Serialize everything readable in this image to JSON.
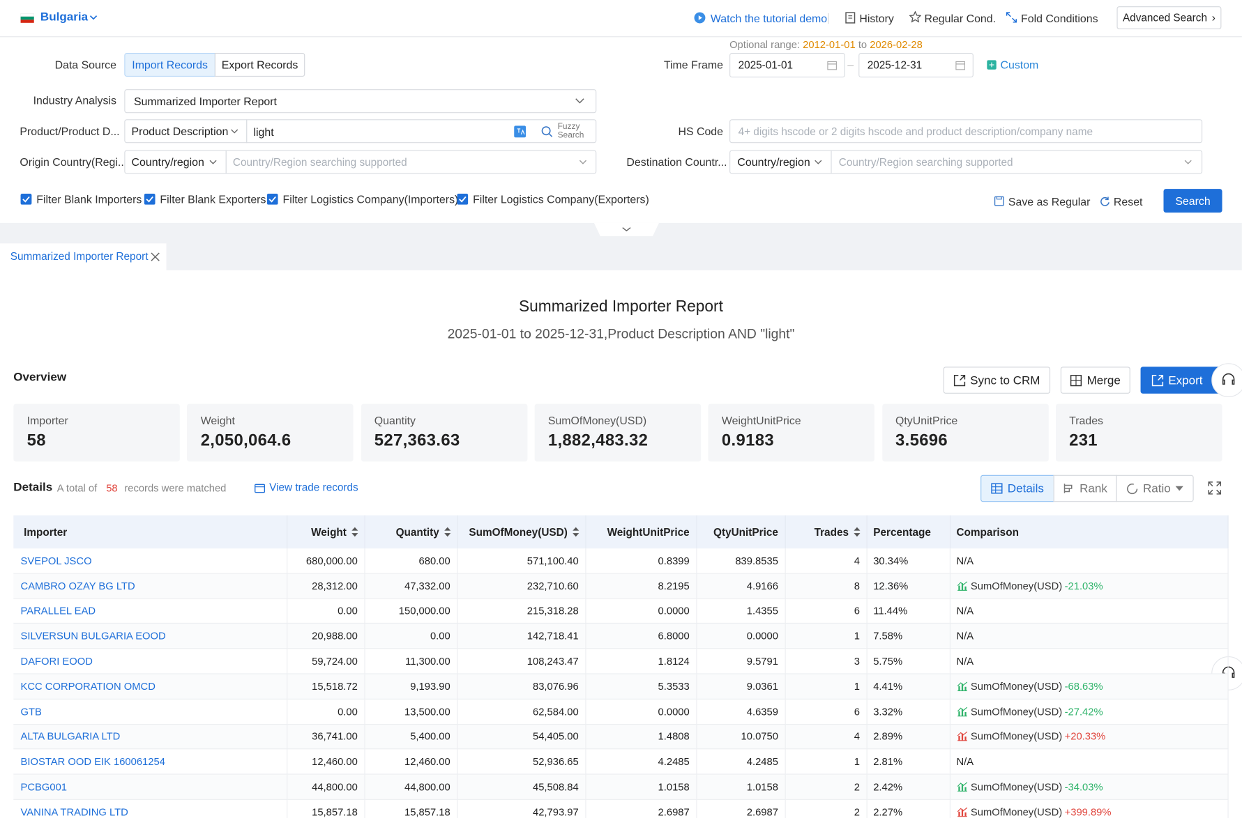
{
  "header": {
    "country": "Bulgaria",
    "links": [
      "Watch the tutorial demo",
      "History",
      "Regular Cond.",
      "Fold Conditions"
    ],
    "advanced_search": "Advanced Search"
  },
  "filters": {
    "optional_range": {
      "label": "Optional range:",
      "start": "2012-01-01",
      "to": "to",
      "end": "2026-02-28"
    },
    "data_source": {
      "label": "Data Source",
      "options": [
        "Import Records",
        "Export Records"
      ]
    },
    "time_frame": {
      "label": "Time Frame",
      "start": "2025-01-01",
      "end": "2025-12-31",
      "custom": "Custom"
    },
    "industry_analysis": {
      "label": "Industry Analysis",
      "value": "Summarized Importer Report"
    },
    "product": {
      "label": "Product/Product D...",
      "type": "Product Description",
      "value": "light",
      "fuzzy": [
        "Fuzzy",
        "Search"
      ]
    },
    "hs_code": {
      "label": "HS Code",
      "placeholder": "4+ digits hscode or 2 digits hscode and product description/company name"
    },
    "origin": {
      "label": "Origin Country(Regi...",
      "type": "Country/region",
      "placeholder": "Country/Region searching supported"
    },
    "destination": {
      "label": "Destination Countr...",
      "type": "Country/region",
      "placeholder": "Country/Region searching supported"
    },
    "checkboxes": [
      "Filter Blank Importers",
      "Filter Blank Exporters",
      "Filter Logistics Company(Importers)",
      "Filter Logistics Company(Exporters)"
    ],
    "actions": [
      "Save as Regular",
      "Reset",
      "Search"
    ]
  },
  "tab": "Summarized Importer Report",
  "report": {
    "title": "Summarized Importer Report",
    "subtitle": "2025-01-01 to 2025-12-31,Product Description AND \"light\"",
    "overview": "Overview",
    "buttons": [
      "Sync to CRM",
      "Merge",
      "Export"
    ],
    "stats": [
      {
        "label": "Importer",
        "value": "58"
      },
      {
        "label": "Weight",
        "value": "2,050,064.6"
      },
      {
        "label": "Quantity",
        "value": "527,363.63"
      },
      {
        "label": "SumOfMoney(USD)",
        "value": "1,882,483.32"
      },
      {
        "label": "WeightUnitPrice",
        "value": "0.9183"
      },
      {
        "label": "QtyUnitPrice",
        "value": "3.5696"
      },
      {
        "label": "Trades",
        "value": "231"
      }
    ],
    "details": {
      "label": "Details",
      "matched": [
        "A total of",
        "58",
        "records were matched"
      ],
      "view": "View trade records",
      "views": [
        "Details",
        "Rank",
        "Ratio"
      ]
    },
    "table": {
      "columns": [
        {
          "label": "Importer",
          "sortable": false
        },
        {
          "label": "Weight",
          "sortable": true
        },
        {
          "label": "Quantity",
          "sortable": true
        },
        {
          "label": "SumOfMoney(USD)",
          "sortable": true
        },
        {
          "label": "WeightUnitPrice",
          "sortable": false
        },
        {
          "label": "QtyUnitPrice",
          "sortable": false
        },
        {
          "label": "Trades",
          "sortable": true
        },
        {
          "label": "Percentage",
          "sortable": false
        },
        {
          "label": "Comparison",
          "sortable": false
        }
      ],
      "rows": [
        [
          "SVEPOL JSCO",
          "680,000.00",
          "680.00",
          "571,100.40",
          "0.8399",
          "839.8535",
          "4",
          "30.34%",
          "N/A"
        ],
        [
          "CAMBRO OZAY BG LTD",
          "28,312.00",
          "47,332.00",
          "232,710.60",
          "8.2195",
          "4.9166",
          "8",
          "12.36%",
          {
            "metric": "SumOfMoney(USD)",
            "change": "-21.03%"
          }
        ],
        [
          "PARALLEL EAD",
          "0.00",
          "150,000.00",
          "215,318.28",
          "0.0000",
          "1.4355",
          "6",
          "11.44%",
          "N/A"
        ],
        [
          "SILVERSUN BULGARIA EOOD",
          "20,988.00",
          "0.00",
          "142,718.41",
          "6.8000",
          "0.0000",
          "1",
          "7.58%",
          "N/A"
        ],
        [
          "DAFORI EOOD",
          "59,724.00",
          "11,300.00",
          "108,243.47",
          "1.8124",
          "9.5791",
          "3",
          "5.75%",
          "N/A"
        ],
        [
          "KCC CORPORATION OMCD",
          "15,518.72",
          "9,193.90",
          "83,076.96",
          "5.3533",
          "9.0361",
          "1",
          "4.41%",
          {
            "metric": "SumOfMoney(USD)",
            "change": "-68.63%"
          }
        ],
        [
          "GTB",
          "0.00",
          "13,500.00",
          "62,584.00",
          "0.0000",
          "4.6359",
          "6",
          "3.32%",
          {
            "metric": "SumOfMoney(USD)",
            "change": "-27.42%"
          }
        ],
        [
          "ALTA BULGARIA LTD",
          "36,741.00",
          "5,400.00",
          "54,405.00",
          "1.4808",
          "10.0750",
          "4",
          "2.89%",
          {
            "metric": "SumOfMoney(USD)",
            "change": "+20.33%"
          }
        ],
        [
          "BIOSTAR OOD EIK 160061254",
          "12,460.00",
          "12,460.00",
          "52,936.65",
          "4.2485",
          "4.2485",
          "1",
          "2.81%",
          "N/A"
        ],
        [
          "PCBG001",
          "44,800.00",
          "44,800.00",
          "45,508.84",
          "1.0158",
          "1.0158",
          "2",
          "2.42%",
          {
            "metric": "SumOfMoney(USD)",
            "change": "-34.03%"
          }
        ],
        [
          "VANINA TRADING LTD",
          "15,857.18",
          "15,857.18",
          "42,793.97",
          "2.6987",
          "2.6987",
          "2",
          "2.27%",
          {
            "metric": "SumOfMoney(USD)",
            "change": "+399.89%"
          }
        ]
      ]
    }
  }
}
